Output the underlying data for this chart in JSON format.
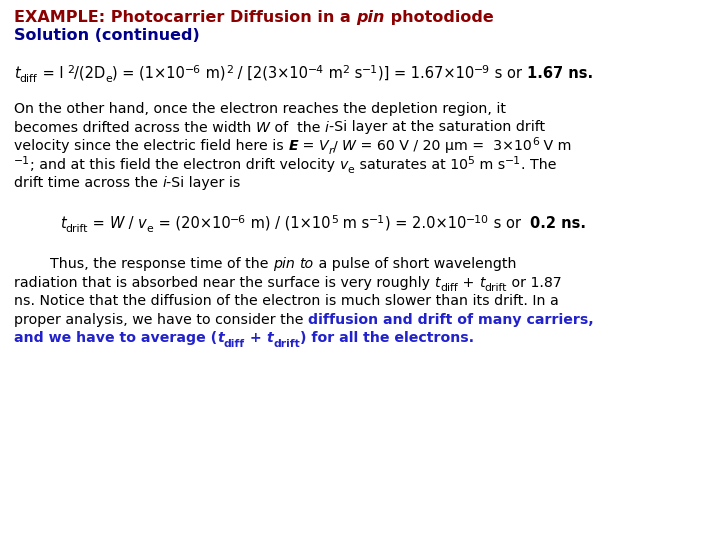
{
  "bg_color": "#ffffff",
  "dark_red": "#8B0000",
  "dark_blue": "#00008B",
  "black": "#000000",
  "blue": "#2222CC",
  "fs_title": 11.5,
  "fs_body": 10.2,
  "fs_eq": 10.5,
  "fs_sub": 7.8
}
